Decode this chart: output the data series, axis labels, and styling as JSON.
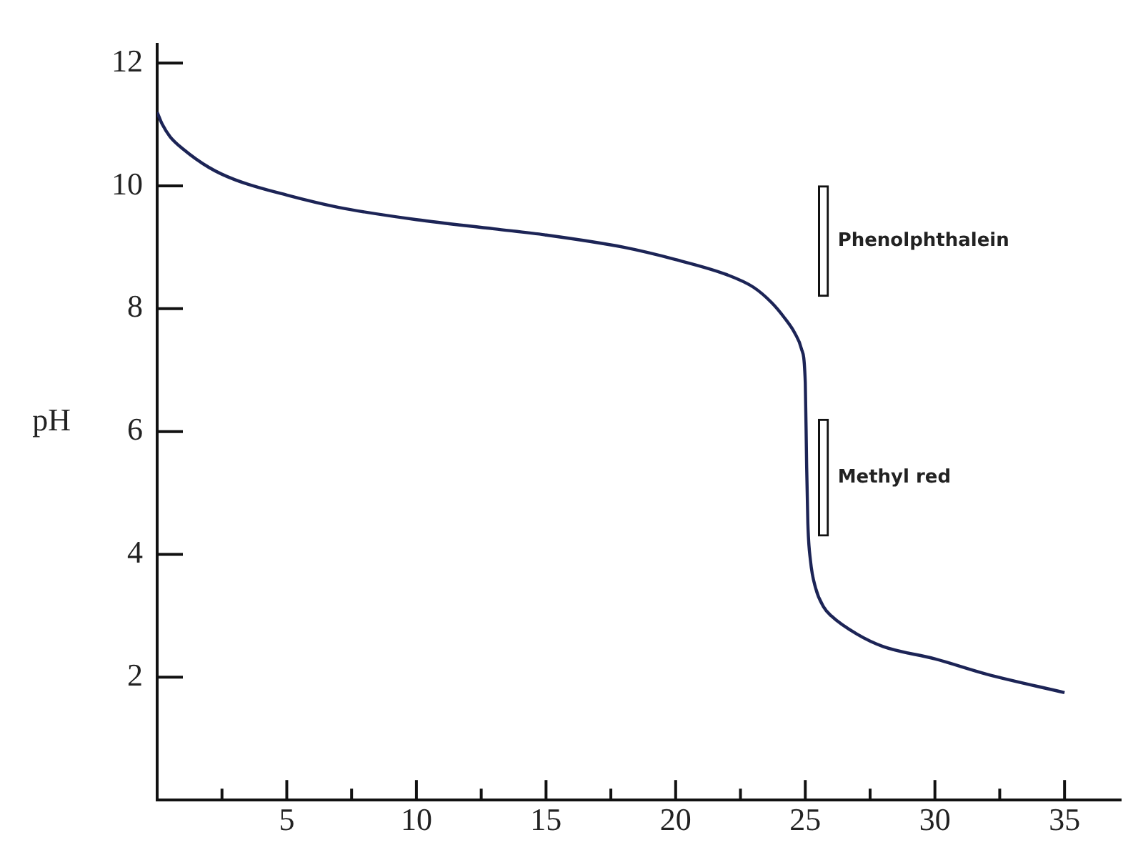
{
  "chart_data": {
    "type": "line",
    "ylabel": "pH",
    "xlim": [
      0,
      37.2
    ],
    "ylim": [
      0,
      12.3
    ],
    "xticks": [
      {
        "value": 2.5,
        "label": null
      },
      5,
      {
        "value": 7.5,
        "label": null
      },
      10,
      {
        "value": 12.5,
        "label": null
      },
      15,
      {
        "value": 17.5,
        "label": null
      },
      20,
      {
        "value": 22.5,
        "label": null
      },
      25,
      {
        "value": 27.5,
        "label": null
      },
      30,
      {
        "value": 32.5,
        "label": null
      },
      35
    ],
    "yticks": [
      2,
      4,
      6,
      8,
      10,
      12
    ],
    "marker": "none",
    "series": [
      {
        "color": "#1c2456",
        "x": [
          0,
          0.2,
          0.5,
          1,
          2,
          3,
          5,
          7,
          10,
          13,
          15,
          18,
          20,
          22,
          23,
          23.7,
          24.2,
          24.6,
          24.85,
          25,
          25.05,
          25.1,
          25.2,
          25.4,
          25.7,
          26,
          27,
          28,
          30,
          32,
          35
        ],
        "values": [
          11.2,
          11.0,
          10.8,
          10.6,
          10.3,
          10.1,
          9.85,
          9.65,
          9.45,
          9.3,
          9.2,
          9.0,
          8.8,
          8.55,
          8.35,
          8.1,
          7.85,
          7.6,
          7.35,
          6.8,
          5.5,
          4.5,
          3.9,
          3.45,
          3.15,
          3.0,
          2.7,
          2.5,
          2.3,
          2.05,
          1.75
        ]
      },
      {
        "type": "bar",
        "color": "#ffffff",
        "x": [
          25.7,
          25.7
        ],
        "base": [
          8.2,
          4.3
        ],
        "values": [
          1.8,
          1.9
        ]
      }
    ],
    "annotations": [
      "Phenolphthalein",
      "Methyl red"
    ]
  }
}
